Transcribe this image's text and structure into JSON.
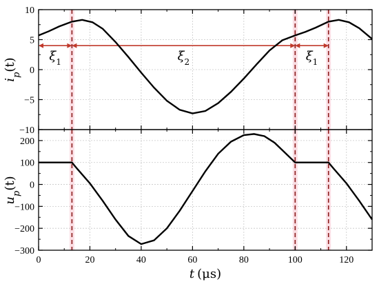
{
  "chart_data": [
    {
      "type": "line",
      "ylabel_main": "i",
      "ylabel_sub": "p",
      "ylabel_arg": "(t)",
      "xlim": [
        0,
        130
      ],
      "ylim": [
        -10,
        10
      ],
      "yticks": [
        -10,
        -5,
        0,
        5,
        10
      ],
      "ytick_labels": [
        "−10",
        "−5",
        "0",
        "5",
        "10"
      ],
      "grid": true,
      "series": [
        {
          "color": "#000000",
          "x": [
            0,
            4,
            8,
            13,
            17,
            21,
            25,
            30,
            35,
            40,
            45,
            50,
            55,
            60,
            65,
            70,
            75,
            80,
            85,
            90,
            95,
            100,
            104,
            108,
            113,
            117,
            121,
            125,
            130
          ],
          "y": [
            5.7,
            6.4,
            7.2,
            8.0,
            8.3,
            7.9,
            6.8,
            4.6,
            2.1,
            -0.5,
            -3.0,
            -5.2,
            -6.7,
            -7.3,
            -6.9,
            -5.6,
            -3.7,
            -1.5,
            0.9,
            3.2,
            4.9,
            5.7,
            6.3,
            7.0,
            8.0,
            8.3,
            7.9,
            6.9,
            5.1
          ]
        }
      ],
      "annotations": [
        {
          "main": "ξ",
          "sub": "1",
          "x": 6.5,
          "y": 1.6
        },
        {
          "main": "ξ",
          "sub": "2",
          "x": 56.5,
          "y": 1.6
        },
        {
          "main": "ξ",
          "sub": "1",
          "x": 106.5,
          "y": 1.6
        }
      ],
      "arrows": [
        {
          "from": 0,
          "to": 13,
          "y": 4
        },
        {
          "from": 13,
          "to": 100,
          "y": 4
        },
        {
          "from": 100,
          "to": 113,
          "y": 4
        }
      ],
      "markers_x": [
        13,
        100,
        113
      ]
    },
    {
      "type": "line",
      "ylabel_main": "u",
      "ylabel_sub": "p",
      "ylabel_arg": "(t)",
      "xlabel_main": "t",
      "xlabel_unit": "(μs)",
      "xlim": [
        0,
        130
      ],
      "ylim": [
        -300,
        250
      ],
      "xticks": [
        0,
        20,
        40,
        60,
        80,
        100,
        120
      ],
      "xtick_labels": [
        "0",
        "20",
        "40",
        "60",
        "80",
        "100",
        "120"
      ],
      "yticks": [
        -300,
        -200,
        -100,
        0,
        100,
        200
      ],
      "ytick_labels": [
        "−300",
        "−200",
        "−100",
        "0",
        "100",
        "200"
      ],
      "grid": true,
      "series": [
        {
          "color": "#000000",
          "x": [
            0,
            13,
            15,
            20,
            25,
            30,
            35,
            40,
            45,
            50,
            55,
            60,
            65,
            70,
            75,
            80,
            84,
            88,
            92,
            96,
            100,
            113,
            115,
            120,
            125,
            130
          ],
          "y": [
            100,
            100,
            72,
            5,
            -75,
            -160,
            -235,
            -272,
            -255,
            -200,
            -120,
            -30,
            60,
            140,
            195,
            225,
            230,
            220,
            190,
            145,
            100,
            100,
            72,
            5,
            -75,
            -160
          ]
        }
      ],
      "markers_x": [
        13,
        100,
        113
      ]
    }
  ],
  "colors": {
    "curve": "#000000",
    "marker_line": "#8b1a1a",
    "marker_band": "#f6b8c6",
    "arrow": "#c0392b",
    "grid": "#c8c8c8"
  }
}
